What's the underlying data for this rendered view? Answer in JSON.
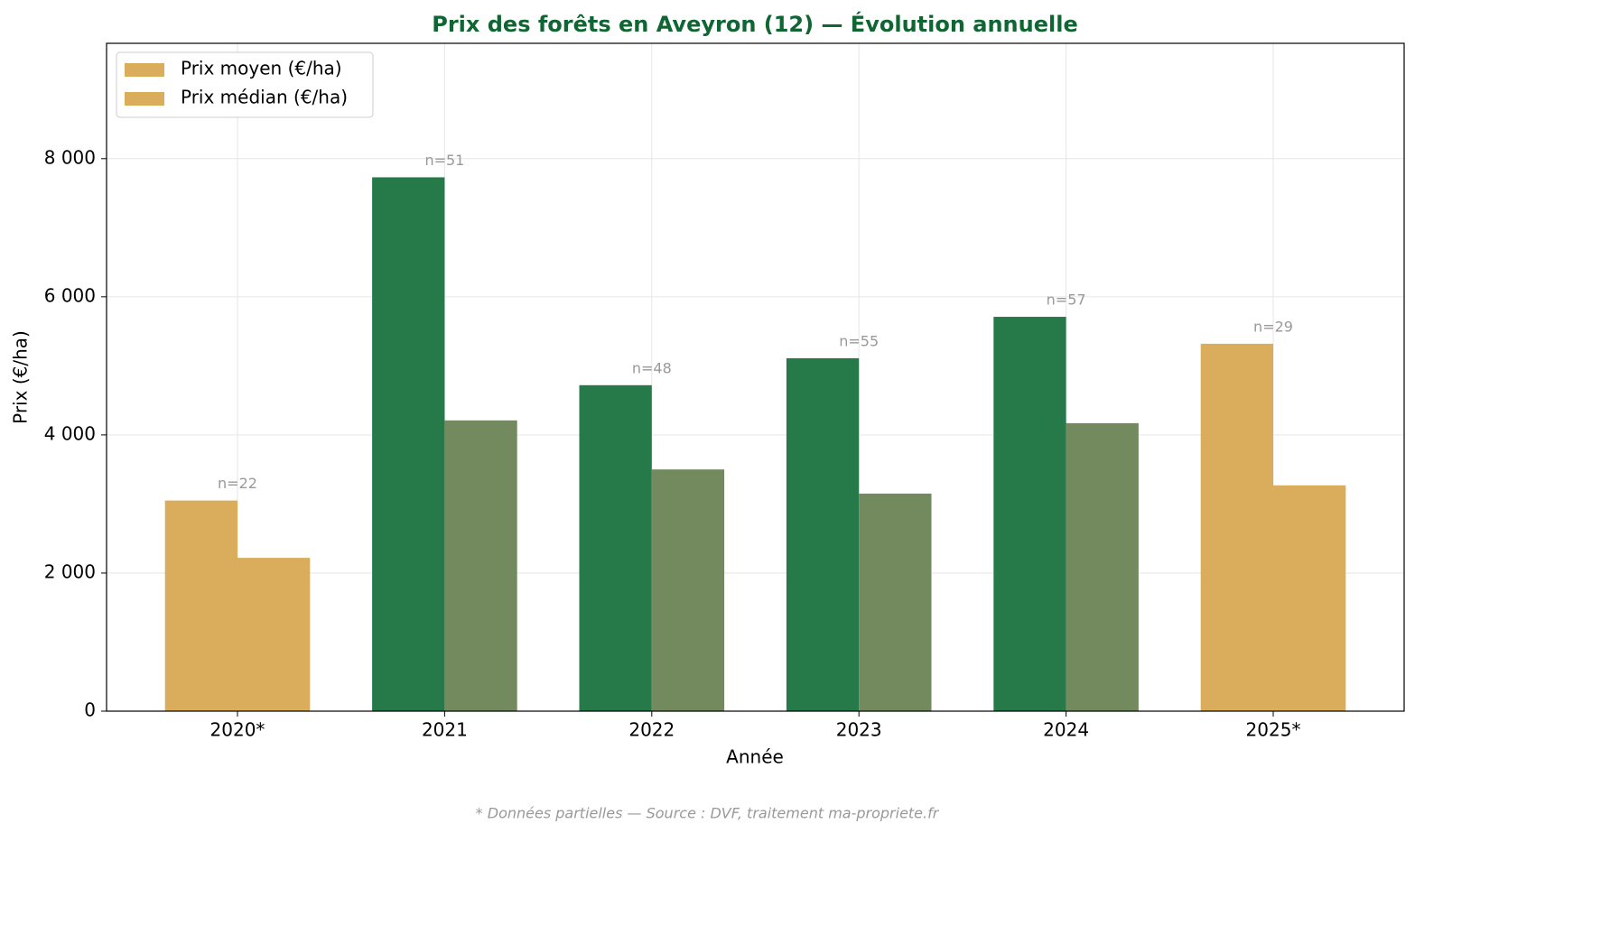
{
  "chart_data": {
    "type": "bar",
    "title": "Prix des forêts en Aveyron (12) — Évolution annuelle",
    "x_label": "Année",
    "y_label": "Prix (€/ha)",
    "footnote": "* Données partielles — Source : DVF, traitement ma-propriete.fr",
    "categories": [
      "2020*",
      "2021",
      "2022",
      "2023",
      "2024",
      "2025*"
    ],
    "series": [
      {
        "name": "Prix moyen (€/ha)",
        "color": "#d9ad5b",
        "colors": [
          "#d9ad5b",
          "#267a4a",
          "#267a4a",
          "#267a4a",
          "#267a4a",
          "#d9ad5b"
        ],
        "values": [
          3050,
          7730,
          4720,
          5110,
          5710,
          5320
        ]
      },
      {
        "name": "Prix médian (€/ha)",
        "color": "#d9ad5b",
        "colors": [
          "#d9ad5b",
          "#728a5e",
          "#728a5e",
          "#728a5e",
          "#728a5e",
          "#d9ad5b"
        ],
        "values": [
          2220,
          4210,
          3500,
          3150,
          4170,
          3270
        ]
      }
    ],
    "annotations": [
      "n=22",
      "n=51",
      "n=48",
      "n=55",
      "n=57",
      "n=29"
    ],
    "ylim": [
      0,
      9670
    ],
    "yticks": [
      0,
      {
        "value": 2000,
        "label": "2 000"
      },
      {
        "value": 4000,
        "label": "4 000"
      },
      {
        "value": 6000,
        "label": "6 000"
      },
      {
        "value": 8000,
        "label": "8 000"
      }
    ],
    "grid": true,
    "legend": "upper left"
  }
}
